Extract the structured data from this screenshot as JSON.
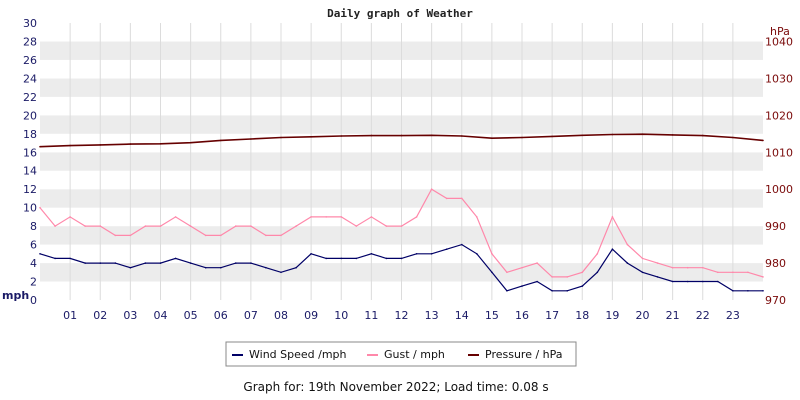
{
  "chart_data": {
    "type": "line",
    "title": "Daily graph of Weather",
    "ylabel": "mph",
    "y2label": "hPa",
    "ylim": [
      0,
      30
    ],
    "y2lim": [
      970,
      1045
    ],
    "yticks": [
      "0",
      "2",
      "4",
      "6",
      "8",
      "10",
      "12",
      "14",
      "16",
      "18",
      "20",
      "22",
      "24",
      "26",
      "28",
      "30"
    ],
    "y2ticks": [
      "970",
      "980",
      "990",
      "1000",
      "1010",
      "1020",
      "1030",
      "1040"
    ],
    "xlim": [
      0,
      24
    ],
    "categories": [
      "01",
      "02",
      "03",
      "04",
      "05",
      "06",
      "07",
      "08",
      "09",
      "10",
      "11",
      "12",
      "13",
      "14",
      "15",
      "16",
      "17",
      "18",
      "19",
      "20",
      "21",
      "22",
      "23"
    ],
    "grid": true,
    "legend_position": "bottom",
    "series": [
      {
        "name": "Wind Speed /mph",
        "axis": "left",
        "color": "#000066",
        "x": [
          0,
          0.5,
          1,
          1.5,
          2,
          2.5,
          3,
          3.5,
          4,
          4.5,
          5,
          5.5,
          6,
          6.5,
          7,
          7.5,
          8,
          8.5,
          9,
          9.5,
          10,
          10.5,
          11,
          11.5,
          12,
          12.5,
          13,
          13.5,
          14,
          14.5,
          15,
          15.5,
          16,
          16.5,
          17,
          17.5,
          18,
          18.5,
          19,
          19.5,
          20,
          20.5,
          21,
          21.5,
          22,
          22.5,
          23,
          23.5,
          24
        ],
        "values": [
          5,
          4.5,
          4.5,
          4,
          4,
          4,
          3.5,
          4,
          4,
          4.5,
          4,
          3.5,
          3.5,
          4,
          4,
          3.5,
          3,
          3.5,
          5,
          4.5,
          4.5,
          4.5,
          5,
          4.5,
          4.5,
          5,
          5,
          5.5,
          6,
          5,
          3,
          1,
          1.5,
          2,
          1,
          1,
          1.5,
          3,
          5.5,
          4,
          3,
          2.5,
          2,
          2,
          2,
          2,
          1,
          1,
          1
        ]
      },
      {
        "name": "Gust / mph",
        "axis": "left",
        "color": "#ff88aa",
        "x": [
          0,
          0.5,
          1,
          1.5,
          2,
          2.5,
          3,
          3.5,
          4,
          4.5,
          5,
          5.5,
          6,
          6.5,
          7,
          7.5,
          8,
          8.5,
          9,
          9.5,
          10,
          10.5,
          11,
          11.5,
          12,
          12.5,
          13,
          13.5,
          14,
          14.5,
          15,
          15.5,
          16,
          16.5,
          17,
          17.5,
          18,
          18.5,
          19,
          19.5,
          20,
          20.5,
          21,
          21.5,
          22,
          22.5,
          23,
          23.5,
          24
        ],
        "values": [
          10,
          8,
          9,
          8,
          8,
          7,
          7,
          8,
          8,
          9,
          8,
          7,
          7,
          8,
          8,
          7,
          7,
          8,
          9,
          9,
          9,
          8,
          9,
          8,
          8,
          9,
          12,
          11,
          11,
          9,
          5,
          3,
          3.5,
          4,
          2.5,
          2.5,
          3,
          5,
          9,
          6,
          4.5,
          4,
          3.5,
          3.5,
          3.5,
          3,
          3,
          3,
          2.5
        ]
      },
      {
        "name": "Pressure / hPa",
        "axis": "right",
        "color": "#660000",
        "x": [
          0,
          1,
          2,
          3,
          4,
          5,
          6,
          7,
          8,
          9,
          10,
          11,
          12,
          13,
          14,
          15,
          16,
          17,
          18,
          19,
          20,
          21,
          22,
          23,
          24
        ],
        "values": [
          1011.5,
          1011.8,
          1012,
          1012.2,
          1012.3,
          1012.6,
          1013.2,
          1013.6,
          1014,
          1014.2,
          1014.4,
          1014.5,
          1014.5,
          1014.6,
          1014.4,
          1013.8,
          1014,
          1014.3,
          1014.6,
          1014.8,
          1014.9,
          1014.7,
          1014.5,
          1014.0,
          1013.2
        ]
      }
    ]
  },
  "legend": {
    "items": [
      {
        "label": "Wind Speed /mph",
        "color": "#000066"
      },
      {
        "label": "Gust / mph",
        "color": "#ff88aa"
      },
      {
        "label": "Pressure / hPa",
        "color": "#660000"
      }
    ]
  },
  "footer": {
    "text": "Graph for: 19th November 2022; Load time: 0.08 s"
  }
}
